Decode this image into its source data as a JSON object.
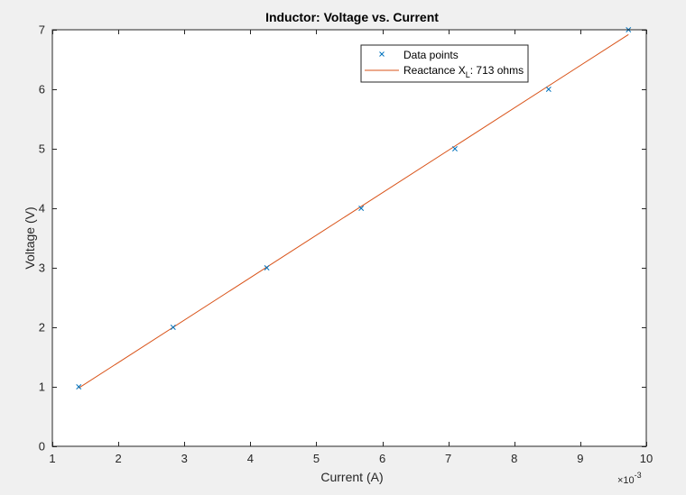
{
  "chart_data": {
    "type": "scatter",
    "title": "Inductor: Voltage vs. Current",
    "xlabel": "Current (A)",
    "ylabel": "Voltage (V)",
    "x_exponent_label": "×10",
    "x_exponent_power": "-3",
    "x_scale_factor": 0.001,
    "xlim": [
      0.001,
      0.01
    ],
    "ylim": [
      0,
      7
    ],
    "xticks": [
      0.001,
      0.002,
      0.003,
      0.004,
      0.005,
      0.006,
      0.007,
      0.008,
      0.009,
      0.01
    ],
    "xtick_labels": [
      "1",
      "2",
      "3",
      "4",
      "5",
      "6",
      "7",
      "8",
      "9",
      "10"
    ],
    "yticks": [
      0,
      1,
      2,
      3,
      4,
      5,
      6,
      7
    ],
    "ytick_labels": [
      "0",
      "1",
      "2",
      "3",
      "4",
      "5",
      "6",
      "7"
    ],
    "grid": false,
    "legend_position": "top-right",
    "series": [
      {
        "name": "Data points",
        "kind": "marker",
        "marker": "x",
        "color": "#0072BD",
        "x": [
          0.0014,
          0.00283,
          0.00425,
          0.00568,
          0.0071,
          0.00852,
          0.00973
        ],
        "y": [
          1,
          2,
          3,
          4,
          5,
          6,
          7
        ]
      },
      {
        "name_prefix": "Reactance X",
        "name_subscript": "L",
        "name_suffix": ": 713 ohms",
        "kind": "line",
        "color": "#D95319",
        "x": [
          0.0014,
          0.00973
        ],
        "y": [
          0.98,
          6.92
        ]
      }
    ]
  }
}
